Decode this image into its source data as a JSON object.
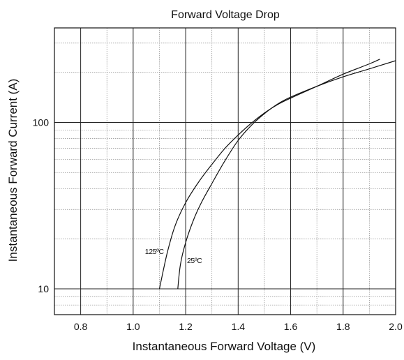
{
  "chart_data": {
    "type": "line",
    "title": "Forward Voltage Drop",
    "xlabel": "Instantaneous Forward Voltage (V)",
    "ylabel": "Instantaneous Forward Current (A)",
    "xlim": [
      0.7,
      2.0
    ],
    "ylim": [
      7,
      370
    ],
    "yscale": "log",
    "grid": true,
    "x_ticks": [
      "0.8",
      "1.0",
      "1.2",
      "1.4",
      "1.6",
      "1.8",
      "2.0"
    ],
    "y_ticks": [
      "10",
      "100"
    ],
    "series": [
      {
        "name": "125ºC",
        "x": [
          1.1,
          1.13,
          1.16,
          1.2,
          1.25,
          1.3,
          1.35,
          1.4,
          1.45,
          1.5,
          1.55,
          1.6,
          1.7,
          1.8,
          1.9,
          1.94
        ],
        "y": [
          10,
          16.5,
          24,
          33,
          44,
          56,
          70,
          84,
          99,
          114,
          128,
          140,
          165,
          195,
          225,
          240
        ]
      },
      {
        "name": "25ºC",
        "x": [
          1.17,
          1.18,
          1.2,
          1.23,
          1.26,
          1.3,
          1.35,
          1.4,
          1.45,
          1.5,
          1.55,
          1.6,
          1.7,
          1.8,
          1.9,
          2.0
        ],
        "y": [
          10,
          14,
          19,
          26,
          33,
          43,
          59,
          78,
          96,
          113,
          129,
          142,
          165,
          188,
          210,
          235
        ]
      }
    ],
    "annotations": [
      {
        "text": "125ºC",
        "series": "125ºC"
      },
      {
        "text": "25ºC",
        "series": "25ºC"
      }
    ]
  }
}
